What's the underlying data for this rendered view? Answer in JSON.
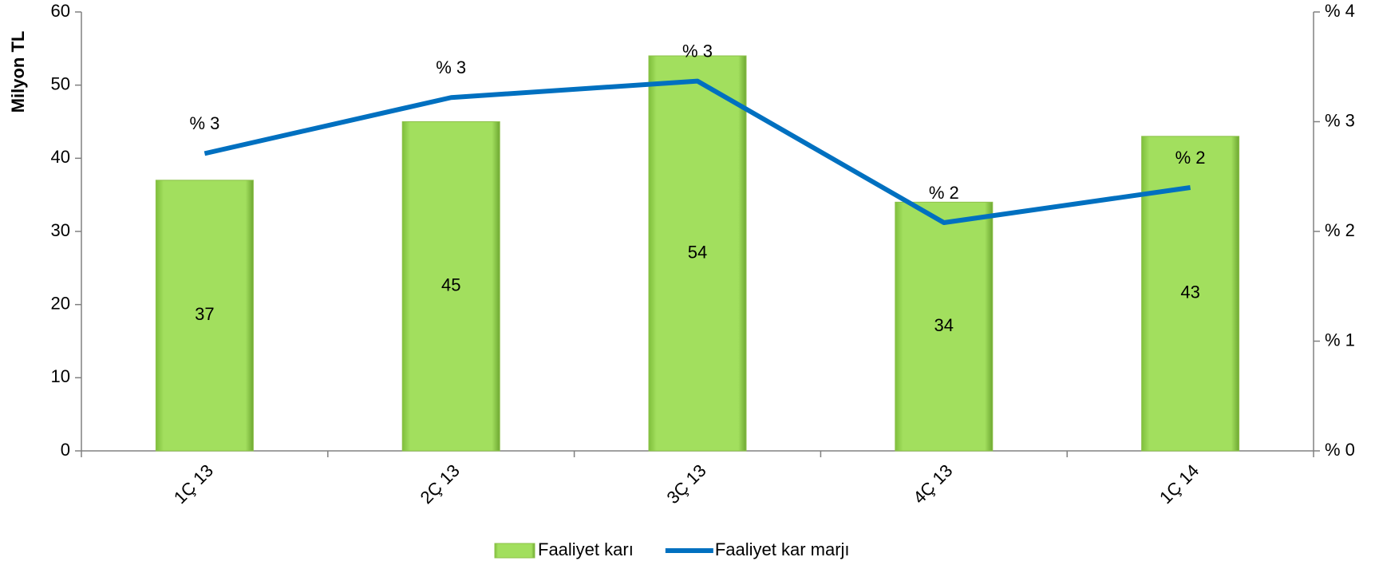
{
  "chart_data": {
    "type": "bar",
    "categories": [
      "1Ç 13",
      "2Ç 13",
      "3Ç 13",
      "4Ç 13",
      "1Ç 14"
    ],
    "series": [
      {
        "name": "Faaliyet karı",
        "type": "bar",
        "color": "#9ddb5a",
        "values": [
          37,
          45,
          54,
          34,
          43
        ]
      },
      {
        "name": "Faaliyet kar marjı",
        "type": "line",
        "axis": "y2",
        "color": "#0070c0",
        "values": [
          2.71,
          3.22,
          3.37,
          2.08,
          2.4
        ],
        "value_labels": [
          "% 3",
          "% 3",
          "% 3",
          "% 2",
          "% 2"
        ]
      }
    ],
    "ylabel": "Milyon  TL",
    "ylim": [
      0,
      60
    ],
    "yticks": [
      0,
      10,
      20,
      30,
      40,
      50,
      60
    ],
    "y2lim": [
      0,
      4
    ],
    "y2ticks": [
      {
        "value": 0,
        "label": "% 0"
      },
      {
        "value": 1,
        "label": "% 1"
      },
      {
        "value": 2,
        "label": "% 2"
      },
      {
        "value": 3,
        "label": "% 3"
      },
      {
        "value": 4,
        "label": "% 4"
      }
    ],
    "legend": "bottom"
  }
}
